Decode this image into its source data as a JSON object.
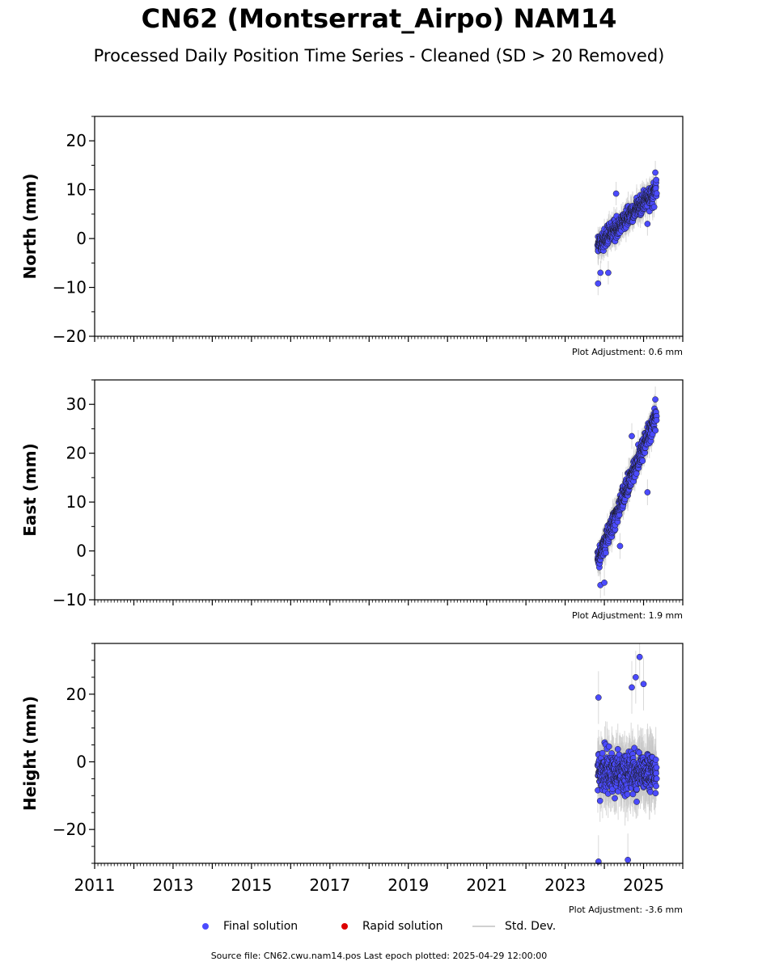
{
  "title": "CN62 (Montserrat_Airpo) NAM14",
  "subtitle": "Processed Daily Position Time Series - Cleaned (SD > 20 Removed)",
  "colors": {
    "final": "#4b4bff",
    "rapid": "#dd0000",
    "stddev": "#c8c8c8",
    "marker_edge": "#1a1a1a"
  },
  "legend": {
    "final": "Final solution",
    "rapid": "Rapid solution",
    "stddev": "Std. Dev."
  },
  "source_text": "Source file: CN62.cwu.nam14.pos  Last epoch plotted: 2025-04-29 12:00:00",
  "chart_data": [
    {
      "type": "scatter",
      "ylabel": "North (mm)",
      "adjustment": "Plot Adjustment: 0.6 mm",
      "xlim": [
        2011.0,
        2026.0
      ],
      "ylim": [
        -20,
        25
      ],
      "yticks": [
        -20,
        -10,
        0,
        10,
        20
      ],
      "ytick_labels": [
        "−20",
        "−10",
        "0",
        "10",
        "20"
      ],
      "x_start": 2023.83,
      "x_end": 2025.33,
      "y_start": -1.5,
      "y_end": 10.0,
      "noise": 2.6,
      "err": 2.0,
      "n_points": 480,
      "outliers": [
        [
          2023.84,
          -9.2
        ],
        [
          2023.9,
          -7.0
        ],
        [
          2024.1,
          -7.0
        ],
        [
          2024.3,
          9.2
        ],
        [
          2025.1,
          3.0
        ],
        [
          2025.3,
          13.5
        ]
      ]
    },
    {
      "type": "scatter",
      "ylabel": "East (mm)",
      "adjustment": "Plot Adjustment: 1.9 mm",
      "xlim": [
        2011.0,
        2026.0
      ],
      "ylim": [
        -10,
        35
      ],
      "yticks": [
        -10,
        0,
        10,
        20,
        30
      ],
      "ytick_labels": [
        "−10",
        "0",
        "10",
        "20",
        "30"
      ],
      "x_start": 2023.83,
      "x_end": 2025.33,
      "y_start": -2.0,
      "y_end": 28.0,
      "noise": 2.8,
      "err": 2.2,
      "n_points": 480,
      "outliers": [
        [
          2023.9,
          -7.0
        ],
        [
          2024.0,
          -6.5
        ],
        [
          2024.7,
          23.5
        ],
        [
          2025.1,
          12.0
        ],
        [
          2025.3,
          31.0
        ],
        [
          2024.4,
          1.0
        ]
      ]
    },
    {
      "type": "scatter",
      "ylabel": "Height (mm)",
      "adjustment": "Plot Adjustment: -3.6 mm",
      "xlim": [
        2011.0,
        2026.0
      ],
      "ylim": [
        -30,
        35
      ],
      "yticks": [
        -20,
        0,
        20
      ],
      "ytick_labels": [
        "−20",
        "0",
        "20"
      ],
      "xticks": [
        2011,
        2013,
        2015,
        2017,
        2019,
        2021,
        2023,
        2025
      ],
      "xtick_labels": [
        "2011",
        "2013",
        "2015",
        "2017",
        "2019",
        "2021",
        "2023",
        "2025"
      ],
      "x_start": 2023.83,
      "x_end": 2025.33,
      "y_start": -3.0,
      "y_end": -3.0,
      "noise": 7.5,
      "err": 6.5,
      "n_points": 480,
      "outliers": [
        [
          2024.9,
          31.0
        ],
        [
          2024.8,
          25.0
        ],
        [
          2023.85,
          19.0
        ],
        [
          2024.6,
          -29.0
        ],
        [
          2023.85,
          -29.5
        ],
        [
          2025.0,
          23.0
        ],
        [
          2024.7,
          22.0
        ]
      ]
    }
  ]
}
